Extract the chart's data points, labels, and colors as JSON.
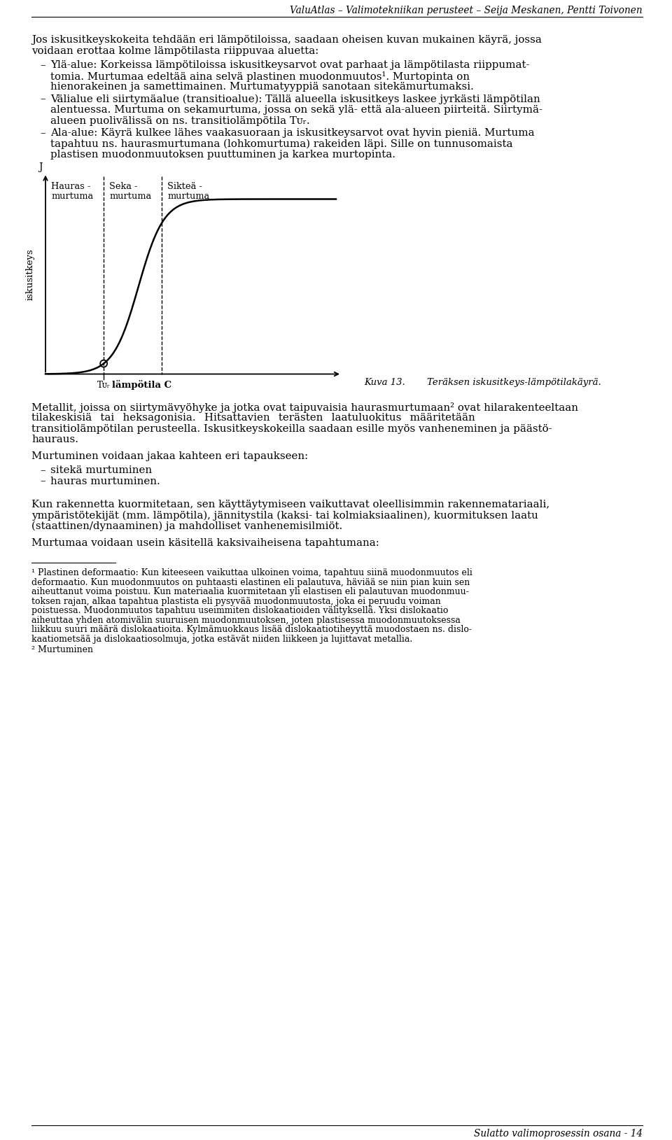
{
  "header_text": "ValuAtlas – Valimotekniikan perusteet – Seija Meskanen, Pentti Toivonen",
  "footer_text": "Sulatto valimoprosessin osana - 14",
  "bg_color": "#ffffff",
  "text_color": "#000000",
  "body_font_size": 10.5,
  "p1_lines": [
    "Jos iskusitkeyskokeita tehdään eri lämpötiloissa, saadaan oheisen kuvan mukainen käyrä, jossa",
    "voidaan erottaa kolme lämpötilasta riippuvaa aluetta:"
  ],
  "b1_line1": "Ylä-alue: Korkeissa lämpötiloissa iskusitkeysarvot ovat parhaat ja lämpötilasta riippumat-",
  "b1_line2": "tomia. Murtumaa edeltää aina selvä plastinen muodonmuutos¹. Murtopinta on",
  "b1_line3": "hienorakeinen ja samettimainen. Murtumatyyppiä sanotaan sitekämurtumaksi.",
  "b2_line1": "Välialue eli siirtymäalue (transitioalue): Tällä alueella iskusitkeys laskee jyrkästi lämpötilan",
  "b2_line2": "alentuessa. Murtuma on sekamurtuma, jossa on sekä ylä- että ala-alueen piirteitä. Siirtymä-",
  "b2_line3": "alueen puolivälissä on ns. transitiolämpötila Tᴜᵣ.",
  "b3_line1": "Ala-alue: Käyrä kulkee lähes vaakasuoraan ja iskusitkeysarvot ovat hyvin pieniä. Murtuma",
  "b3_line2": "tapahtuu ns. haurasmurtumana (lohkomurtuma) rakeiden läpi. Sille on tunnusomaista",
  "b3_line3": "plastisen muodonmuutoksen puuttuminen ja karkea murtopinta.",
  "chart_region1_l1": "Hauras -",
  "chart_region1_l2": "murtuma",
  "chart_region2_l1": "Seka -",
  "chart_region2_l2": "murtuma",
  "chart_region3_l1": "Sikteä -",
  "chart_region3_l2": "murtuma",
  "chart_j": "J",
  "chart_xlabel": "lämpötila C",
  "chart_ylabel": "iskusitkeys",
  "chart_ttr": "Tᴜᵣ",
  "figure_caption_left": "Kuva 13.",
  "figure_caption_right": "Teräksen iskusitkeys-lämpötilakäyrä.",
  "p2_lines": [
    "Metallit, joissa on siirtymävyöhyke ja jotka ovat taipuvaisia haurasmurtumaan² ovat hilarakenteeltaan",
    "tilakeskisiä  tai  heksagonisia.  Hitsattavien  terästen  laatuluokitus  määritetään",
    "transitiolämpötilan perusteella. Iskusitkeyskokeilla saadaan esille myös vanheneminen ja päästö-",
    "hauraus."
  ],
  "p3": "Murtuminen voidaan jakaa kahteen eri tapaukseen:",
  "sb1": "sitekä murtuminen",
  "sb2": "hauras murtuminen.",
  "p4_lines": [
    "Kun rakennetta kuormitetaan, sen käyttäytymiseen vaikuttavat oleellisimmin rakennematariaali,",
    "ympäristötekijät (mm. lämpötila), jännitystila (kaksi- tai kolmiaksiaalinen), kuormituksen laatu",
    "(staattinen/dynaaminen) ja mahdolliset vanhenemisilmiöt."
  ],
  "p5": "Murtumaa voidaan usein käsitellä kaksivaiheisena tapahtumana:",
  "fn1_lines": [
    "¹ Plastinen deformaatio: Kun kiteeseen vaikuttaa ulkoinen voima, tapahtuu siinä muodonmuutos eli",
    "deformaatio. Kun muodonmuutos on puhtaasti elastinen eli palautuva, häviää se niin pian kuin sen",
    "aiheuttanut voima poistuu. Kun materiaalia kuormitetaan yli elastisen eli palautuvan muodonmuu-",
    "toksen rajan, alkaa tapahtua plastista eli pysyvää muodonmuutosta, joka ei peruudu voiman",
    "poistuessa. Muodonmuutos tapahtuu useimmiten dislokaatioiden välityksellä. Yksi dislokaatio",
    "aiheuttaa yhden atomivälin suuruisen muodonmuutoksen, joten plastisessa muodonmuutoksessa",
    "liikkuu suuri määrä dislokaatioita. Kylmämuokkaus lisää dislokaatiotiheyyttä muodostaen ns. dislo-",
    "kaatiometsää ja dislokaatiosolmuja, jotka estävät niiden liikkeen ja lujittavat metallia."
  ],
  "fn2": "² Murtuminen",
  "dash": "–"
}
